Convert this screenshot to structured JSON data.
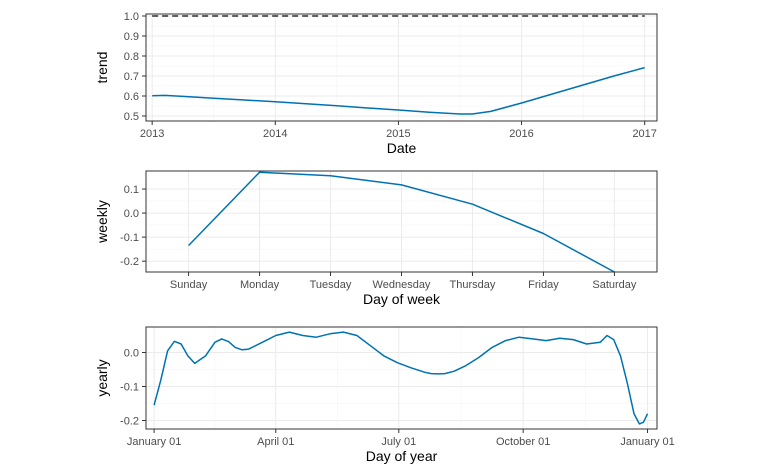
{
  "chart_data": [
    {
      "id": "trend",
      "type": "line",
      "xlabel": "Date",
      "ylabel": "trend",
      "xlim": [
        2012.95,
        2017.1
      ],
      "ylim": [
        0.475,
        1.01
      ],
      "xticks": [
        2013,
        2014,
        2015,
        2016,
        2017
      ],
      "xticklabels": [
        "2013",
        "2014",
        "2015",
        "2016",
        "2017"
      ],
      "yticks": [
        0.5,
        0.6,
        0.7,
        0.8,
        0.9,
        1.0
      ],
      "yticklabels": [
        "0.5",
        "0.6",
        "0.7",
        "0.8",
        "0.9",
        "1.0"
      ],
      "cap": {
        "y": 1.0,
        "x": [
          2013.0,
          2017.0
        ],
        "style": "dashed"
      },
      "series": [
        {
          "name": "trend",
          "x": [
            2013.0,
            2013.1,
            2013.25,
            2013.5,
            2013.75,
            2014.0,
            2014.25,
            2014.5,
            2014.75,
            2015.0,
            2015.25,
            2015.5,
            2015.6,
            2015.75,
            2016.0,
            2016.25,
            2016.5,
            2016.75,
            2017.0
          ],
          "values": [
            0.601,
            0.603,
            0.598,
            0.589,
            0.58,
            0.571,
            0.561,
            0.551,
            0.54,
            0.53,
            0.519,
            0.51,
            0.51,
            0.523,
            0.565,
            0.61,
            0.655,
            0.7,
            0.742
          ]
        }
      ]
    },
    {
      "id": "weekly",
      "type": "line",
      "xlabel": "Day of week",
      "ylabel": "weekly",
      "categories": [
        "Sunday",
        "Monday",
        "Tuesday",
        "Wednesday",
        "Thursday",
        "Friday",
        "Saturday"
      ],
      "ylim": [
        -0.245,
        0.175
      ],
      "yticks": [
        -0.2,
        -0.1,
        0.0,
        0.1
      ],
      "yticklabels": [
        "-0.2",
        "-0.1",
        "0.0",
        "0.1"
      ],
      "series": [
        {
          "name": "weekly",
          "values": [
            -0.135,
            0.17,
            0.155,
            0.117,
            0.037,
            -0.085,
            -0.245
          ]
        }
      ]
    },
    {
      "id": "yearly",
      "type": "line",
      "xlabel": "Day of year",
      "ylabel": "yearly",
      "xlim": [
        -6,
        372
      ],
      "ylim": [
        -0.225,
        0.075
      ],
      "xticks": [
        0,
        90,
        181,
        273,
        365
      ],
      "xticklabels": [
        "January 01",
        "April 01",
        "July 01",
        "October 01",
        "January 01"
      ],
      "yticks": [
        -0.2,
        -0.1,
        0.0
      ],
      "yticklabels": [
        "-0.2",
        "-0.1",
        "0.0"
      ],
      "series": [
        {
          "name": "yearly",
          "x": [
            0,
            5,
            10,
            15,
            20,
            25,
            30,
            38,
            45,
            50,
            55,
            60,
            65,
            70,
            80,
            90,
            100,
            110,
            120,
            130,
            140,
            150,
            160,
            170,
            180,
            190,
            200,
            205,
            210,
            215,
            222,
            230,
            240,
            250,
            260,
            270,
            280,
            290,
            300,
            310,
            320,
            330,
            335,
            340,
            345,
            350,
            355,
            359,
            362,
            365
          ],
          "values": [
            -0.155,
            -0.08,
            0.005,
            0.033,
            0.025,
            -0.01,
            -0.032,
            -0.01,
            0.03,
            0.04,
            0.032,
            0.015,
            0.008,
            0.01,
            0.03,
            0.05,
            0.06,
            0.05,
            0.045,
            0.055,
            0.06,
            0.05,
            0.02,
            -0.01,
            -0.03,
            -0.045,
            -0.058,
            -0.062,
            -0.063,
            -0.062,
            -0.055,
            -0.04,
            -0.015,
            0.015,
            0.035,
            0.045,
            0.04,
            0.035,
            0.042,
            0.038,
            0.025,
            0.03,
            0.05,
            0.038,
            -0.01,
            -0.09,
            -0.18,
            -0.21,
            -0.205,
            -0.18
          ]
        }
      ]
    }
  ]
}
